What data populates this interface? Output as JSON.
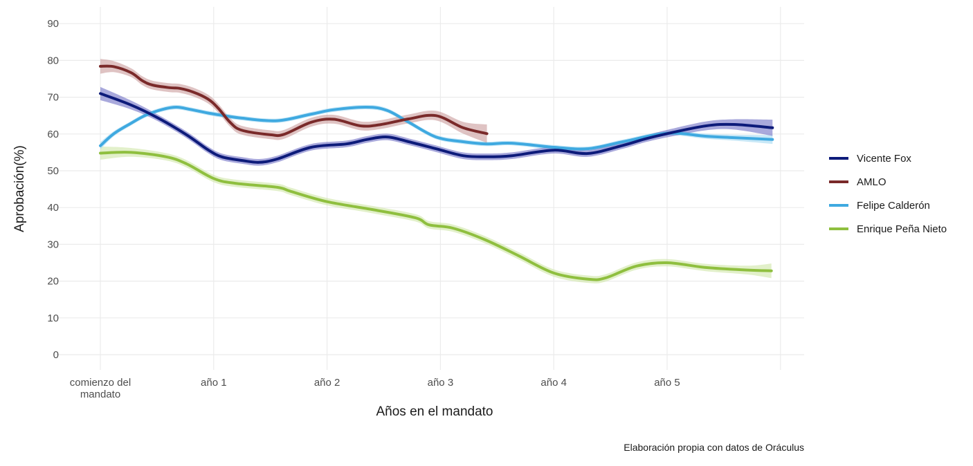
{
  "chart_data": {
    "type": "line",
    "title": "",
    "xlabel": "Años en el mandato",
    "ylabel": "Aprobación(%)",
    "caption": "Elaboración propia con datos de Oráculus",
    "ylim": [
      -3,
      93
    ],
    "xlim": [
      -0.4,
      6.1
    ],
    "grid": true,
    "legend_position": "right",
    "y_ticks": [
      0,
      10,
      20,
      30,
      40,
      50,
      60,
      70,
      80,
      90
    ],
    "y_tick_labels": [
      "0",
      "10",
      "20",
      "30",
      "40",
      "50",
      "60",
      "70",
      "80",
      "90"
    ],
    "x_ticks": [
      0,
      1,
      2,
      3,
      4,
      5
    ],
    "x_tick_labels": [
      [
        "comienzo del",
        "mandato"
      ],
      [
        "año 1"
      ],
      [
        "año 2"
      ],
      [
        "año 3"
      ],
      [
        "año 4"
      ],
      [
        "año 5"
      ]
    ],
    "x_minor_gridlines": [
      6
    ],
    "series": [
      {
        "name": "Vicente Fox",
        "color": "#0d1b7a",
        "band_color": "#6f6fc4",
        "x": [
          0,
          0.27,
          0.5,
          0.76,
          0.95,
          1.07,
          1.25,
          1.4,
          1.56,
          1.86,
          2.17,
          2.35,
          2.53,
          2.72,
          2.96,
          3.2,
          3.41,
          3.63,
          4.0,
          4.3,
          4.61,
          4.8,
          5.0,
          5.34,
          5.59,
          5.93
        ],
        "y": [
          71,
          67.9,
          64.5,
          59.8,
          55.7,
          53.8,
          52.8,
          52.3,
          53.2,
          56.4,
          57.3,
          58.5,
          59.2,
          57.9,
          56,
          54.1,
          53.8,
          54.1,
          55.6,
          54.7,
          56.9,
          58.6,
          60.1,
          62.2,
          62.6,
          61.7
        ],
        "band": [
          1.8,
          1.2,
          0.9,
          0.9,
          0.9,
          0.9,
          0.9,
          0.9,
          0.9,
          0.9,
          0.9,
          0.9,
          0.9,
          0.9,
          0.9,
          0.9,
          0.9,
          0.9,
          0.9,
          0.9,
          0.9,
          0.9,
          1.0,
          1.2,
          1.4,
          2.2
        ]
      },
      {
        "name": "AMLO",
        "color": "#7a2a2a",
        "band_color": "#c99b9b",
        "x": [
          0,
          0.12,
          0.27,
          0.37,
          0.46,
          0.61,
          0.7,
          0.82,
          0.95,
          1.04,
          1.15,
          1.25,
          1.5,
          1.62,
          1.86,
          2.06,
          2.3,
          2.48,
          2.72,
          2.96,
          3.2,
          3.41
        ],
        "y": [
          78.4,
          78.3,
          76.7,
          74.5,
          73.3,
          72.6,
          72.4,
          71.4,
          69.5,
          67,
          63,
          61,
          59.8,
          59.9,
          63.2,
          64,
          62.2,
          62.6,
          64.1,
          65,
          61.7,
          60.1
        ],
        "band": [
          2.0,
          1.5,
          1.2,
          1.2,
          1.2,
          1.2,
          1.2,
          1.2,
          1.2,
          1.2,
          1.2,
          1.2,
          1.2,
          1.2,
          1.2,
          1.2,
          1.2,
          1.2,
          1.2,
          1.3,
          1.6,
          2.5
        ]
      },
      {
        "name": "Felipe Calderón",
        "color": "#3fa9e0",
        "band_color": "#a3d8f2",
        "x": [
          0,
          0.12,
          0.27,
          0.4,
          0.55,
          0.67,
          0.79,
          0.95,
          1.07,
          1.25,
          1.56,
          1.86,
          2.06,
          2.35,
          2.53,
          2.72,
          2.96,
          3.2,
          3.41,
          3.63,
          4.0,
          4.3,
          4.61,
          5.0,
          5.34,
          5.59,
          5.93
        ],
        "y": [
          56.8,
          60.1,
          62.9,
          65.1,
          66.7,
          67.3,
          66.7,
          65.7,
          65.1,
          64.3,
          63.6,
          65.4,
          66.6,
          67.3,
          66.4,
          63.2,
          59.2,
          57.9,
          57.3,
          57.5,
          56.4,
          56,
          57.9,
          60.2,
          59.4,
          59,
          58.5
        ],
        "band": [
          1.0,
          0.7,
          0.6,
          0.6,
          0.6,
          0.6,
          0.6,
          0.6,
          0.6,
          0.6,
          0.6,
          0.6,
          0.6,
          0.6,
          0.6,
          0.6,
          0.6,
          0.6,
          0.6,
          0.6,
          0.6,
          0.6,
          0.6,
          0.6,
          0.7,
          0.8,
          1.2
        ]
      },
      {
        "name": "Enrique Peña Nieto",
        "color": "#8fbf3f",
        "band_color": "#cfe6a6",
        "x": [
          0,
          0.27,
          0.58,
          0.76,
          1.0,
          1.19,
          1.56,
          1.68,
          2.0,
          2.41,
          2.78,
          2.9,
          3.11,
          3.39,
          3.69,
          4.0,
          4.31,
          4.46,
          4.73,
          5.0,
          5.34,
          5.71,
          5.92
        ],
        "y": [
          54.8,
          55,
          53.8,
          51.9,
          47.9,
          46.6,
          45.5,
          44.4,
          41.6,
          39.4,
          37.2,
          35.3,
          34.4,
          31.3,
          26.9,
          22.2,
          20.5,
          20.9,
          24.1,
          25,
          23.7,
          23,
          22.8
        ],
        "band": [
          1.8,
          1.2,
          1.0,
          1.0,
          1.0,
          1.0,
          1.0,
          1.0,
          1.0,
          1.0,
          1.0,
          1.0,
          1.0,
          1.0,
          1.0,
          1.0,
          1.0,
          1.0,
          1.0,
          1.0,
          1.0,
          1.2,
          2.0
        ]
      }
    ]
  }
}
